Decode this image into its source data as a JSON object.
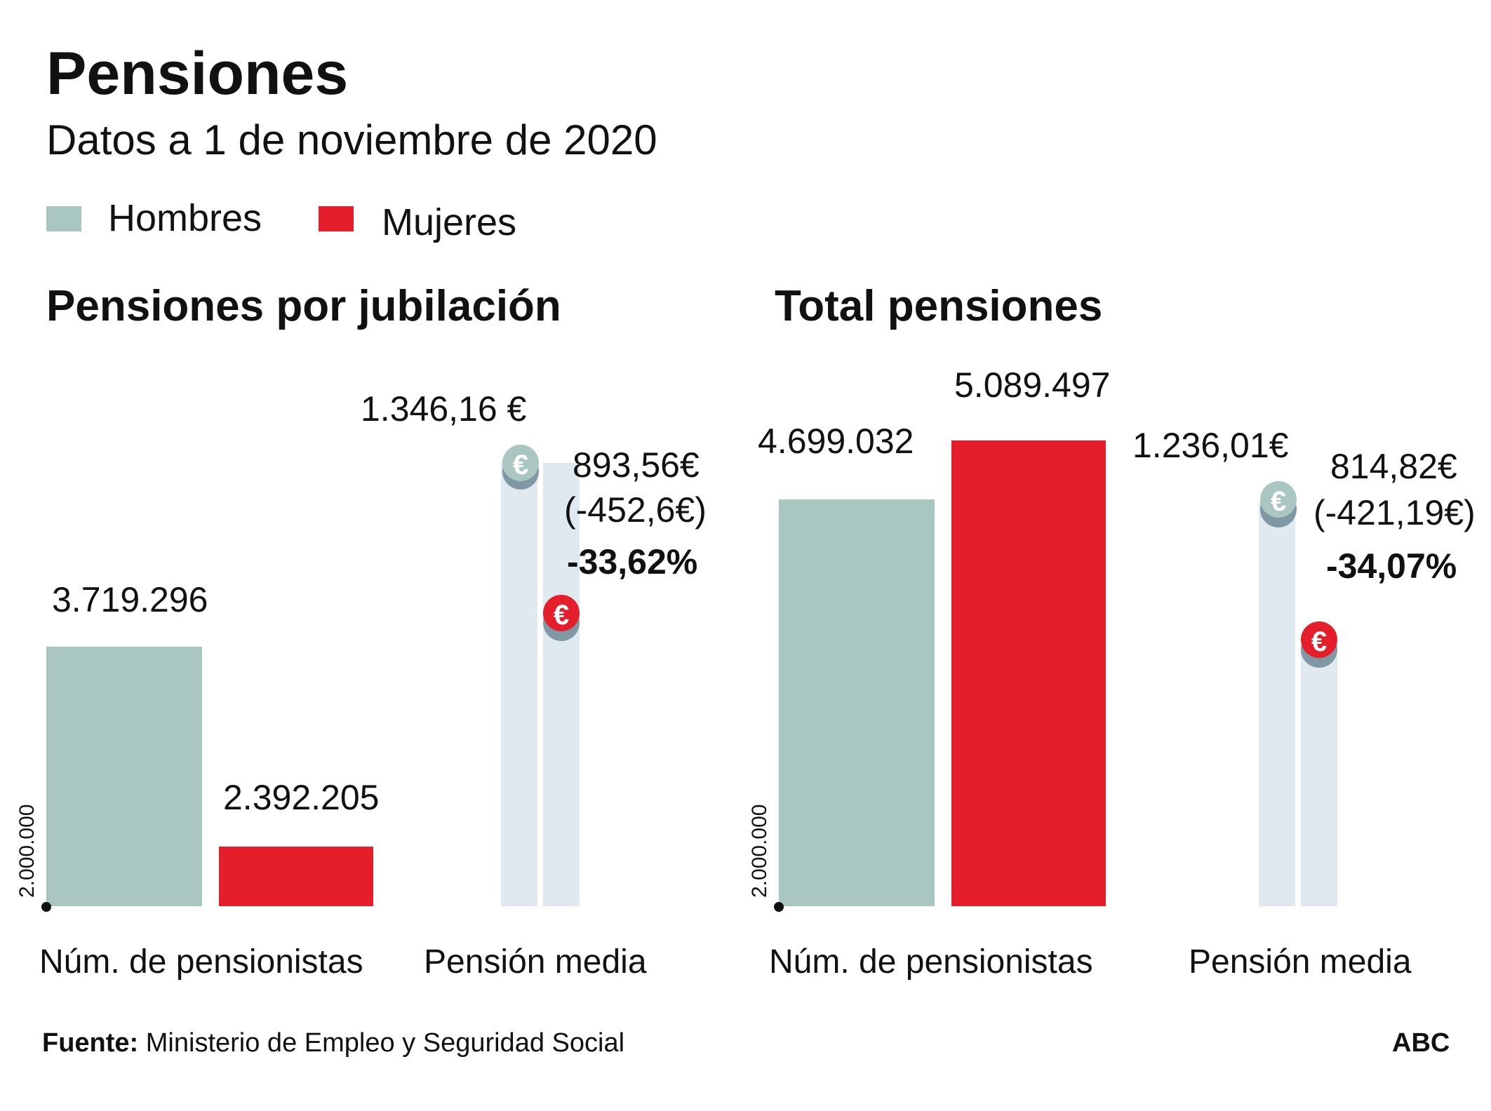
{
  "title": "Pensiones",
  "subtitle": "Datos a 1 de noviembre de 2020",
  "legend": [
    {
      "label": "Hombres",
      "color": "#a9c7c0"
    },
    {
      "label": "Mujeres",
      "color": "#e41e2b"
    }
  ],
  "colors": {
    "hombres": "#a9c7c0",
    "mujeres": "#e41e2b",
    "track": "#dfe9ef",
    "coin_shadow": "#7f98a3"
  },
  "sections": {
    "jubilacion": {
      "title": "Pensiones por jubilación",
      "axis_label": "2.000.000",
      "count_labels": [
        "3.719.296",
        "2.392.205"
      ],
      "count_category": "Núm. de pensionistas",
      "pension_men_label": "1.346,16 €",
      "pension_women_label": "893,56€",
      "pension_diff": "(-452,6€)",
      "pension_pct": "-33,62%",
      "pension_category": "Pensión media"
    },
    "total": {
      "title": "Total pensiones",
      "axis_label": "2.000.000",
      "count_labels": [
        "4.699.032",
        "5.089.497"
      ],
      "count_category": "Núm. de pensionistas",
      "pension_men_label": "1.236,01€",
      "pension_women_label": "814,82€",
      "pension_diff": "(-421,19€)",
      "pension_pct": "-34,07%",
      "pension_category": "Pensión media"
    }
  },
  "icons": {
    "coin": "euro-coin-icon",
    "coin_glyph": "€"
  },
  "footer": {
    "source_label": "Fuente:",
    "source_text": "Ministerio de Empleo y Seguridad Social",
    "brand": "ABC"
  },
  "chart_data": [
    {
      "type": "bar",
      "title": "Pensiones por jubilación",
      "subtitle": "Núm. de pensionistas",
      "categories": [
        "Hombres",
        "Mujeres"
      ],
      "values": [
        3719296,
        2392205
      ],
      "axis_start": 2000000
    },
    {
      "type": "bar",
      "title": "Pensiones por jubilación",
      "subtitle": "Pensión media",
      "categories": [
        "Hombres",
        "Mujeres"
      ],
      "values": [
        1346.16,
        893.56
      ],
      "difference": -452.6,
      "difference_pct": -33.62
    },
    {
      "type": "bar",
      "title": "Total pensiones",
      "subtitle": "Núm. de pensionistas",
      "categories": [
        "Hombres",
        "Mujeres"
      ],
      "values": [
        4699032,
        5089497
      ],
      "axis_start": 2000000
    },
    {
      "type": "bar",
      "title": "Total pensiones",
      "subtitle": "Pensión media",
      "categories": [
        "Hombres",
        "Mujeres"
      ],
      "values": [
        1236.01,
        814.82
      ],
      "difference": -421.19,
      "difference_pct": -34.07
    }
  ]
}
